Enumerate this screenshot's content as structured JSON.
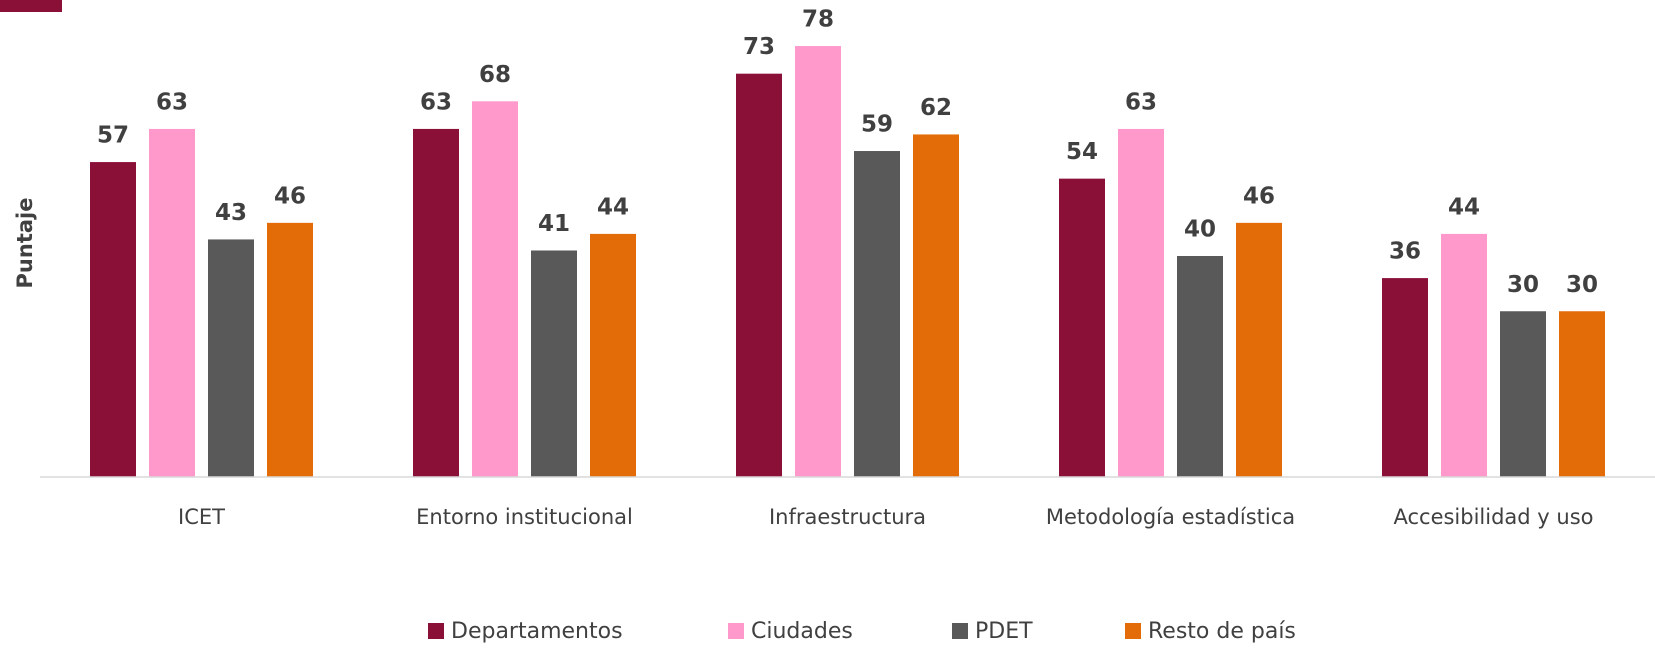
{
  "chart_data": {
    "type": "bar",
    "y_axis_label": "Puntaje",
    "categories": [
      "ICET",
      "Entorno institucional",
      "Infraestructura",
      "Metodología estadística",
      "Accesibilidad y uso"
    ],
    "series": [
      {
        "name": "Departamentos",
        "color": "#8b1038",
        "values": [
          57,
          63,
          73,
          54,
          36
        ]
      },
      {
        "name": "Ciudades",
        "color": "#ff99cc",
        "values": [
          63,
          68,
          78,
          63,
          44
        ]
      },
      {
        "name": "PDET",
        "color": "#595959",
        "values": [
          43,
          41,
          59,
          40,
          30
        ]
      },
      {
        "name": "Resto de país",
        "color": "#e36c09",
        "values": [
          46,
          44,
          62,
          46,
          30
        ]
      }
    ],
    "ylim": [
      0,
      80
    ],
    "legend": "bottom"
  }
}
